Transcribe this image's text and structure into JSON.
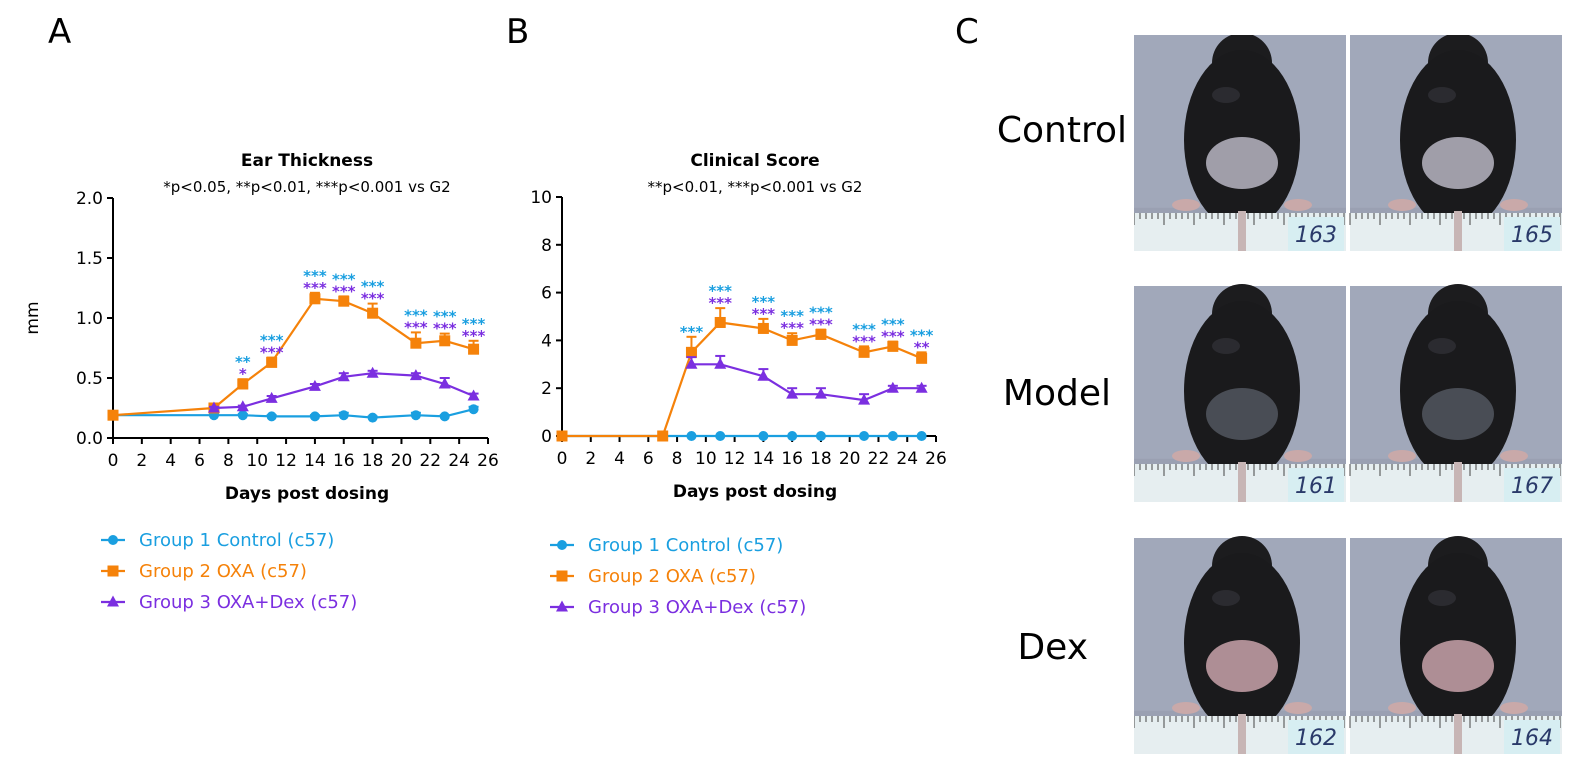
{
  "panels": {
    "a": "A",
    "b": "B",
    "c": "C"
  },
  "groups": [
    {
      "name": "Group 1 Control (c57)",
      "color": "#1a9fe0",
      "marker": "circle"
    },
    {
      "name": "Group 2 OXA (c57)",
      "color": "#f5820a",
      "marker": "square"
    },
    {
      "name": "Group 3 OXA+Dex (c57)",
      "color": "#7b2fe0",
      "marker": "triangle"
    }
  ],
  "chart_data": [
    {
      "type": "line",
      "title": "Ear Thickness",
      "subtitle": "*p<0.05, **p<0.01, ***p<0.001 vs G2",
      "xlabel": "Days post dosing",
      "ylabel": "mm",
      "xlim": [
        0,
        26
      ],
      "ylim": [
        0,
        2.0
      ],
      "xticks": [
        "0",
        "2",
        "4",
        "6",
        "8",
        "10",
        "12",
        "14",
        "16",
        "18",
        "20",
        "22",
        "24",
        "26"
      ],
      "yticks": [
        "0.0",
        "0.5",
        "1.0",
        "1.5",
        "2.0"
      ],
      "series": [
        {
          "name": "Group 1 Control (c57)",
          "x": [
            0,
            7,
            9,
            11,
            14,
            16,
            18,
            21,
            23,
            25
          ],
          "y": [
            0.19,
            0.19,
            0.19,
            0.18,
            0.18,
            0.19,
            0.17,
            0.19,
            0.18,
            0.24
          ],
          "err": [
            0.01,
            0.01,
            0.01,
            0.01,
            0.01,
            0.02,
            0.01,
            0.02,
            0.01,
            0.02
          ]
        },
        {
          "name": "Group 2 OXA (c57)",
          "x": [
            0,
            7,
            9,
            11,
            14,
            16,
            18,
            21,
            23,
            25
          ],
          "y": [
            0.19,
            0.25,
            0.45,
            0.63,
            1.16,
            1.14,
            1.04,
            0.79,
            0.81,
            0.74
          ],
          "err": [
            0.01,
            0.02,
            0.04,
            0.04,
            0.05,
            0.04,
            0.08,
            0.09,
            0.06,
            0.07
          ]
        },
        {
          "name": "Group 3 OXA+Dex (c57)",
          "x": [
            7,
            9,
            11,
            14,
            16,
            18,
            21,
            23,
            25
          ],
          "y": [
            0.25,
            0.26,
            0.33,
            0.43,
            0.51,
            0.54,
            0.52,
            0.45,
            0.35
          ],
          "err": [
            0.01,
            0.01,
            0.02,
            0.02,
            0.03,
            0.02,
            0.02,
            0.05,
            0.02
          ]
        }
      ],
      "annotations": [
        {
          "x": 9,
          "y": 0.49,
          "marks": [
            {
              "text": "**",
              "group": 0
            },
            {
              "text": "*",
              "group": 2
            }
          ]
        },
        {
          "x": 11,
          "y": 0.67,
          "marks": [
            {
              "text": "***",
              "group": 0
            },
            {
              "text": "***",
              "group": 2
            }
          ]
        },
        {
          "x": 14,
          "y": 1.21,
          "marks": [
            {
              "text": "***",
              "group": 0
            },
            {
              "text": "***",
              "group": 2
            }
          ]
        },
        {
          "x": 16,
          "y": 1.18,
          "marks": [
            {
              "text": "***",
              "group": 0
            },
            {
              "text": "***",
              "group": 2
            }
          ]
        },
        {
          "x": 18,
          "y": 1.12,
          "marks": [
            {
              "text": "***",
              "group": 0
            },
            {
              "text": "***",
              "group": 2
            }
          ]
        },
        {
          "x": 21,
          "y": 0.88,
          "marks": [
            {
              "text": "***",
              "group": 0
            },
            {
              "text": "***",
              "group": 2
            }
          ]
        },
        {
          "x": 23,
          "y": 0.87,
          "marks": [
            {
              "text": "***",
              "group": 0
            },
            {
              "text": "***",
              "group": 2
            }
          ]
        },
        {
          "x": 25,
          "y": 0.81,
          "marks": [
            {
              "text": "***",
              "group": 0
            },
            {
              "text": "***",
              "group": 2
            }
          ]
        }
      ]
    },
    {
      "type": "line",
      "title": "Clinical Score",
      "subtitle": "**p<0.01, ***p<0.001 vs G2",
      "xlabel": "Days post dosing",
      "ylabel": "",
      "xlim": [
        0,
        26
      ],
      "ylim": [
        0,
        10
      ],
      "xticks": [
        "0",
        "2",
        "4",
        "6",
        "8",
        "10",
        "12",
        "14",
        "16",
        "18",
        "20",
        "22",
        "24",
        "26"
      ],
      "yticks": [
        "0",
        "2",
        "4",
        "6",
        "8",
        "10"
      ],
      "series": [
        {
          "name": "Group 1 Control (c57)",
          "x": [
            0,
            7,
            9,
            11,
            14,
            16,
            18,
            21,
            23,
            25
          ],
          "y": [
            0,
            0,
            0,
            0,
            0,
            0,
            0,
            0,
            0,
            0
          ],
          "err": [
            0,
            0,
            0,
            0,
            0,
            0,
            0,
            0,
            0,
            0
          ]
        },
        {
          "name": "Group 2 OXA (c57)",
          "x": [
            0,
            7,
            9,
            11,
            14,
            16,
            18,
            21,
            23,
            25
          ],
          "y": [
            0,
            0,
            3.5,
            4.75,
            4.5,
            4.0,
            4.25,
            3.5,
            3.75,
            3.25
          ],
          "err": [
            0,
            0,
            0.65,
            0.6,
            0.4,
            0.3,
            0.2,
            0.25,
            0.2,
            0.25
          ]
        },
        {
          "name": "Group 3 OXA+Dex (c57)",
          "x": [
            9,
            11,
            14,
            16,
            18,
            21,
            23,
            25
          ],
          "y": [
            3.0,
            3.0,
            2.5,
            1.75,
            1.75,
            1.5,
            2.0,
            2.0
          ],
          "err": [
            0.3,
            0.35,
            0.3,
            0.25,
            0.25,
            0.25,
            0.1,
            0.1
          ]
        }
      ],
      "annotations": [
        {
          "x": 9,
          "y": 4.15,
          "marks": [
            {
              "text": "***",
              "group": 0
            }
          ]
        },
        {
          "x": 11,
          "y": 5.35,
          "marks": [
            {
              "text": "***",
              "group": 0
            },
            {
              "text": "***",
              "group": 2
            }
          ]
        },
        {
          "x": 14,
          "y": 4.9,
          "marks": [
            {
              "text": "***",
              "group": 0
            },
            {
              "text": "***",
              "group": 2
            }
          ]
        },
        {
          "x": 16,
          "y": 4.3,
          "marks": [
            {
              "text": "***",
              "group": 0
            },
            {
              "text": "***",
              "group": 2
            }
          ]
        },
        {
          "x": 18,
          "y": 4.45,
          "marks": [
            {
              "text": "***",
              "group": 0
            },
            {
              "text": "***",
              "group": 2
            }
          ]
        },
        {
          "x": 21,
          "y": 3.75,
          "marks": [
            {
              "text": "***",
              "group": 0
            },
            {
              "text": "***",
              "group": 2
            }
          ]
        },
        {
          "x": 23,
          "y": 3.95,
          "marks": [
            {
              "text": "***",
              "group": 0
            },
            {
              "text": "***",
              "group": 2
            }
          ]
        },
        {
          "x": 25,
          "y": 3.5,
          "marks": [
            {
              "text": "***",
              "group": 0
            },
            {
              "text": "**",
              "group": 2
            }
          ]
        }
      ]
    }
  ],
  "photo_panel": {
    "rows": [
      {
        "label": "Control",
        "ids": [
          "163",
          "165"
        ]
      },
      {
        "label": "Model",
        "ids": [
          "161",
          "167"
        ]
      },
      {
        "label": "Dex",
        "ids": [
          "162",
          "164"
        ]
      }
    ]
  }
}
